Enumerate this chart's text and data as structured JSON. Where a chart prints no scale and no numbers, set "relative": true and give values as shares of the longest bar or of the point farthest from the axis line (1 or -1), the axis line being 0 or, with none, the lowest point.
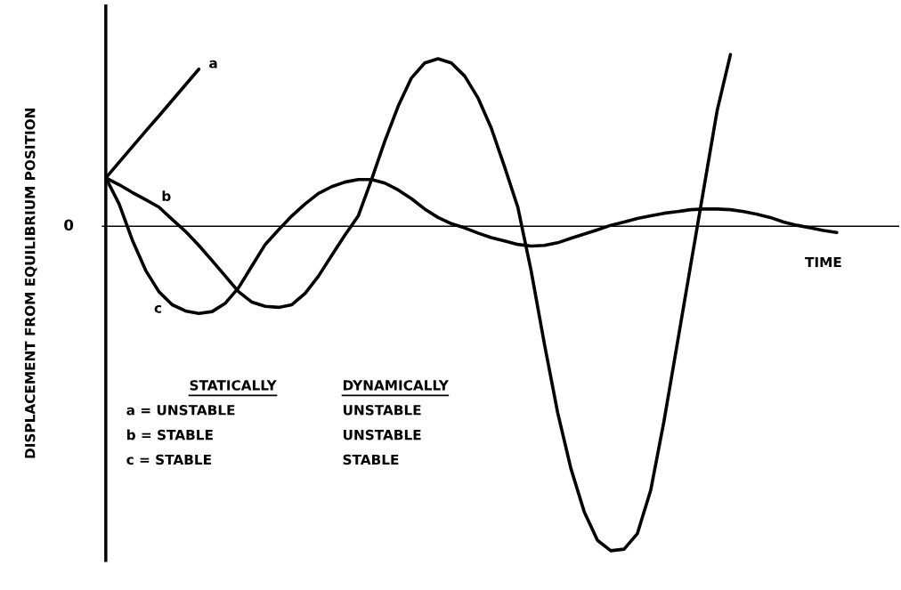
{
  "chart_data": {
    "type": "line",
    "relative": true,
    "ylabel": "DISPLACEMENT FROM EQUILIBRIUM POSITION",
    "xlabel": "TIME",
    "categories": [
      null,
      null,
      null,
      null,
      null,
      null,
      null,
      null,
      null,
      null,
      null,
      null,
      null,
      null,
      null,
      null,
      null,
      null,
      null,
      null,
      null,
      null,
      null,
      null,
      null,
      null,
      null,
      null,
      null,
      null,
      null,
      null,
      null,
      null,
      null,
      null,
      null,
      null,
      null,
      null,
      null,
      null,
      null,
      null,
      null,
      null,
      null,
      null,
      null,
      null,
      null,
      null,
      null,
      null,
      null,
      null,
      null,
      null,
      null,
      null
    ],
    "series": [
      {
        "name": "a",
        "color": "#000000",
        "values": [
          0.149,
          0.197,
          0.245,
          0.293,
          0.34,
          0.388,
          0.436,
          0.484,
          null,
          null,
          null,
          null,
          null,
          null,
          null,
          null,
          null,
          null,
          null,
          null,
          null,
          null,
          null,
          null,
          null,
          null,
          null,
          null,
          null,
          null,
          null,
          null,
          null,
          null,
          null,
          null,
          null,
          null,
          null,
          null,
          null,
          null,
          null,
          null,
          null,
          null,
          null,
          null,
          null,
          null,
          null,
          null,
          null,
          null,
          null,
          null,
          null,
          null,
          null,
          null
        ]
      },
      {
        "name": "b",
        "color": "#000000",
        "values": [
          0.149,
          0.128,
          0.104,
          0.082,
          0.059,
          0.021,
          -0.016,
          -0.059,
          -0.106,
          -0.154,
          -0.202,
          -0.234,
          -0.247,
          -0.25,
          -0.242,
          -0.207,
          -0.154,
          -0.09,
          -0.027,
          0.032,
          0.144,
          0.263,
          0.37,
          0.457,
          0.503,
          0.516,
          0.503,
          0.463,
          0.396,
          0.303,
          0.184,
          0.059,
          -0.136,
          -0.362,
          -0.574,
          -0.747,
          -0.88,
          -0.968,
          -1,
          -0.995,
          -0.947,
          -0.814,
          -0.601,
          -0.362,
          -0.122,
          0.117,
          0.356,
          0.529,
          null,
          null,
          null,
          null,
          null,
          null,
          null,
          null,
          null,
          null,
          null,
          null
        ]
      },
      {
        "name": "c",
        "color": "#000000",
        "values": [
          0.149,
          0.069,
          -0.043,
          -0.136,
          -0.202,
          -0.242,
          -0.261,
          -0.269,
          -0.263,
          -0.237,
          -0.189,
          -0.122,
          -0.056,
          -0.011,
          0.032,
          0.069,
          0.101,
          0.122,
          0.136,
          0.144,
          0.144,
          0.133,
          0.112,
          0.085,
          0.053,
          0.027,
          0.008,
          -0.005,
          -0.021,
          -0.035,
          -0.045,
          -0.056,
          -0.061,
          -0.059,
          -0.051,
          -0.037,
          -0.024,
          -0.011,
          0.003,
          0.013,
          0.024,
          0.032,
          0.04,
          0.045,
          0.051,
          0.053,
          0.053,
          0.051,
          0.045,
          0.037,
          0.027,
          0.013,
          0.003,
          -0.005,
          -0.013,
          -0.019,
          null,
          null,
          null,
          null
        ]
      }
    ],
    "annotations": [
      "0",
      "STATICALLY",
      "DYNAMICALLY",
      "a = UNSTABLE",
      "UNSTABLE",
      "b = STABLE",
      "UNSTABLE",
      "c = STABLE",
      "STABLE"
    ],
    "legend": false,
    "marker": "none",
    "line_style": "solid"
  }
}
